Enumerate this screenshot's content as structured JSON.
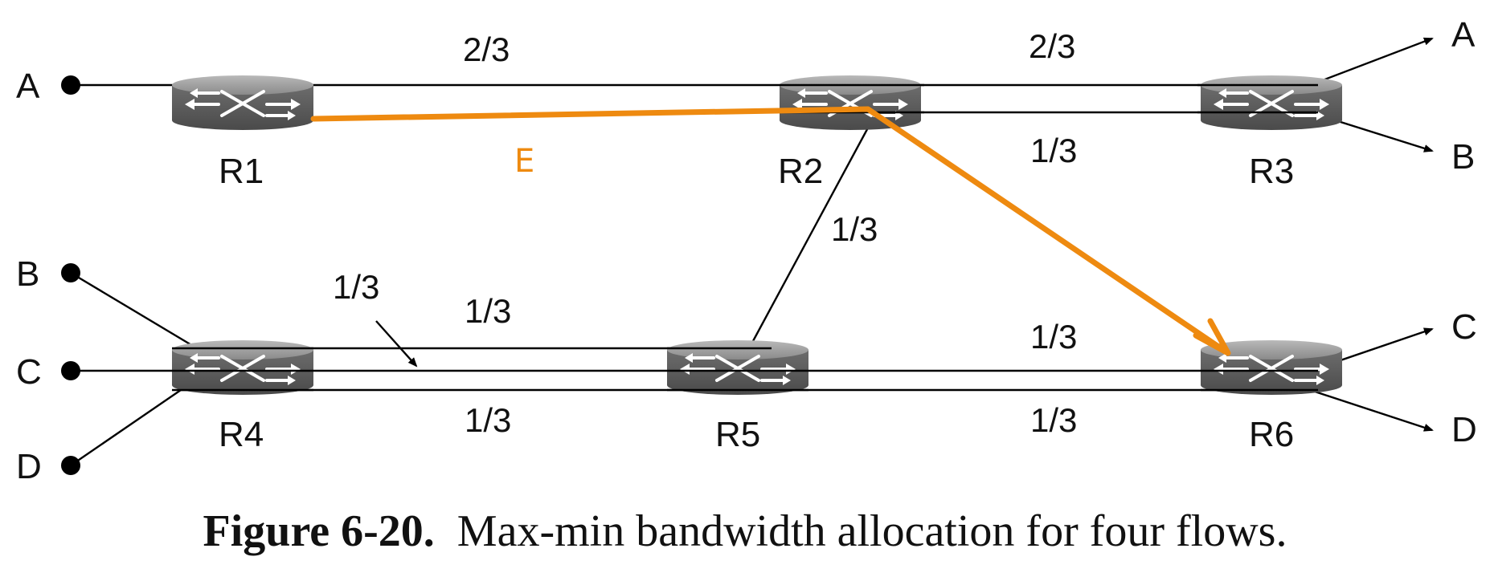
{
  "nodes": {
    "routers": {
      "r1": "R1",
      "r2": "R2",
      "r3": "R3",
      "r4": "R4",
      "r5": "R5",
      "r6": "R6"
    },
    "sources": {
      "a": "A",
      "b": "B",
      "c": "C",
      "d": "D"
    },
    "destinations": {
      "a": "A",
      "b": "B",
      "c": "C",
      "d": "D"
    }
  },
  "rates": {
    "r1_r2_top": "2/3",
    "r2_r3_top": "2/3",
    "r2_r3_bottom": "1/3",
    "r2_r5": "1/3",
    "r4_arrow": "1/3",
    "r4_r5_top": "1/3",
    "r4_r5_bottom": "1/3",
    "r5_r6_top": "1/3",
    "r5_r6_bottom": "1/3"
  },
  "annotation": {
    "label": "E",
    "color": "#ee8a10"
  },
  "caption": {
    "number": "Figure 6-20.",
    "text": "Max-min bandwidth allocation for four flows."
  }
}
